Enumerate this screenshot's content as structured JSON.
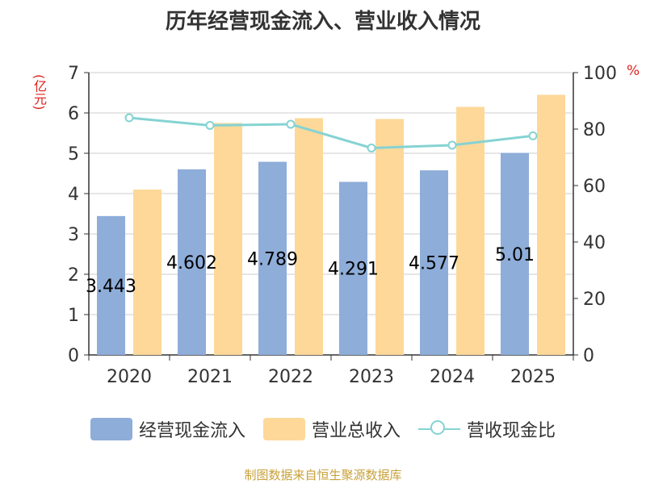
{
  "title": "历年经营现金流入、营业收入情况",
  "left_unit": "(亿元)",
  "right_unit": "%",
  "source": "制图数据来自恒生聚源数据库",
  "colors": {
    "cash_bar": "#8eadd9",
    "revenue_bar": "#fdd899",
    "ratio_line": "#85d3d3",
    "axis": "#333333",
    "grid": "#cccccc",
    "unit_text": "#e0201c",
    "source_text": "#c8a13a"
  },
  "chart_data": {
    "type": "bar",
    "categories": [
      "2020",
      "2021",
      "2022",
      "2023",
      "2024",
      "2025"
    ],
    "series": [
      {
        "name": "经营现金流入",
        "type": "bar",
        "axis": "left",
        "values": [
          3.443,
          4.602,
          4.789,
          4.291,
          4.577,
          5.01
        ],
        "labels": [
          "3.443",
          "4.602",
          "4.789",
          "4.291",
          "4.577",
          "5.01"
        ]
      },
      {
        "name": "营业总收入",
        "type": "bar",
        "axis": "left",
        "values": [
          4.1,
          5.75,
          5.87,
          5.85,
          6.15,
          6.45
        ]
      },
      {
        "name": "营收现金比",
        "type": "line",
        "axis": "right",
        "values": [
          84.0,
          81.3,
          81.7,
          73.3,
          74.3,
          77.6
        ]
      }
    ],
    "left_axis": {
      "label": "(亿元)",
      "ylim": [
        0,
        7
      ],
      "ticks": [
        "0",
        "1",
        "2",
        "3",
        "4",
        "5",
        "6",
        "7"
      ]
    },
    "right_axis": {
      "label": "%",
      "ylim": [
        0,
        100
      ],
      "ticks": [
        "0",
        "20",
        "40",
        "60",
        "80",
        "100"
      ]
    },
    "grid": true,
    "legend_position": "bottom"
  },
  "legend": [
    {
      "label": "经营现金流入"
    },
    {
      "label": "营业总收入"
    },
    {
      "label": "营收现金比"
    }
  ]
}
